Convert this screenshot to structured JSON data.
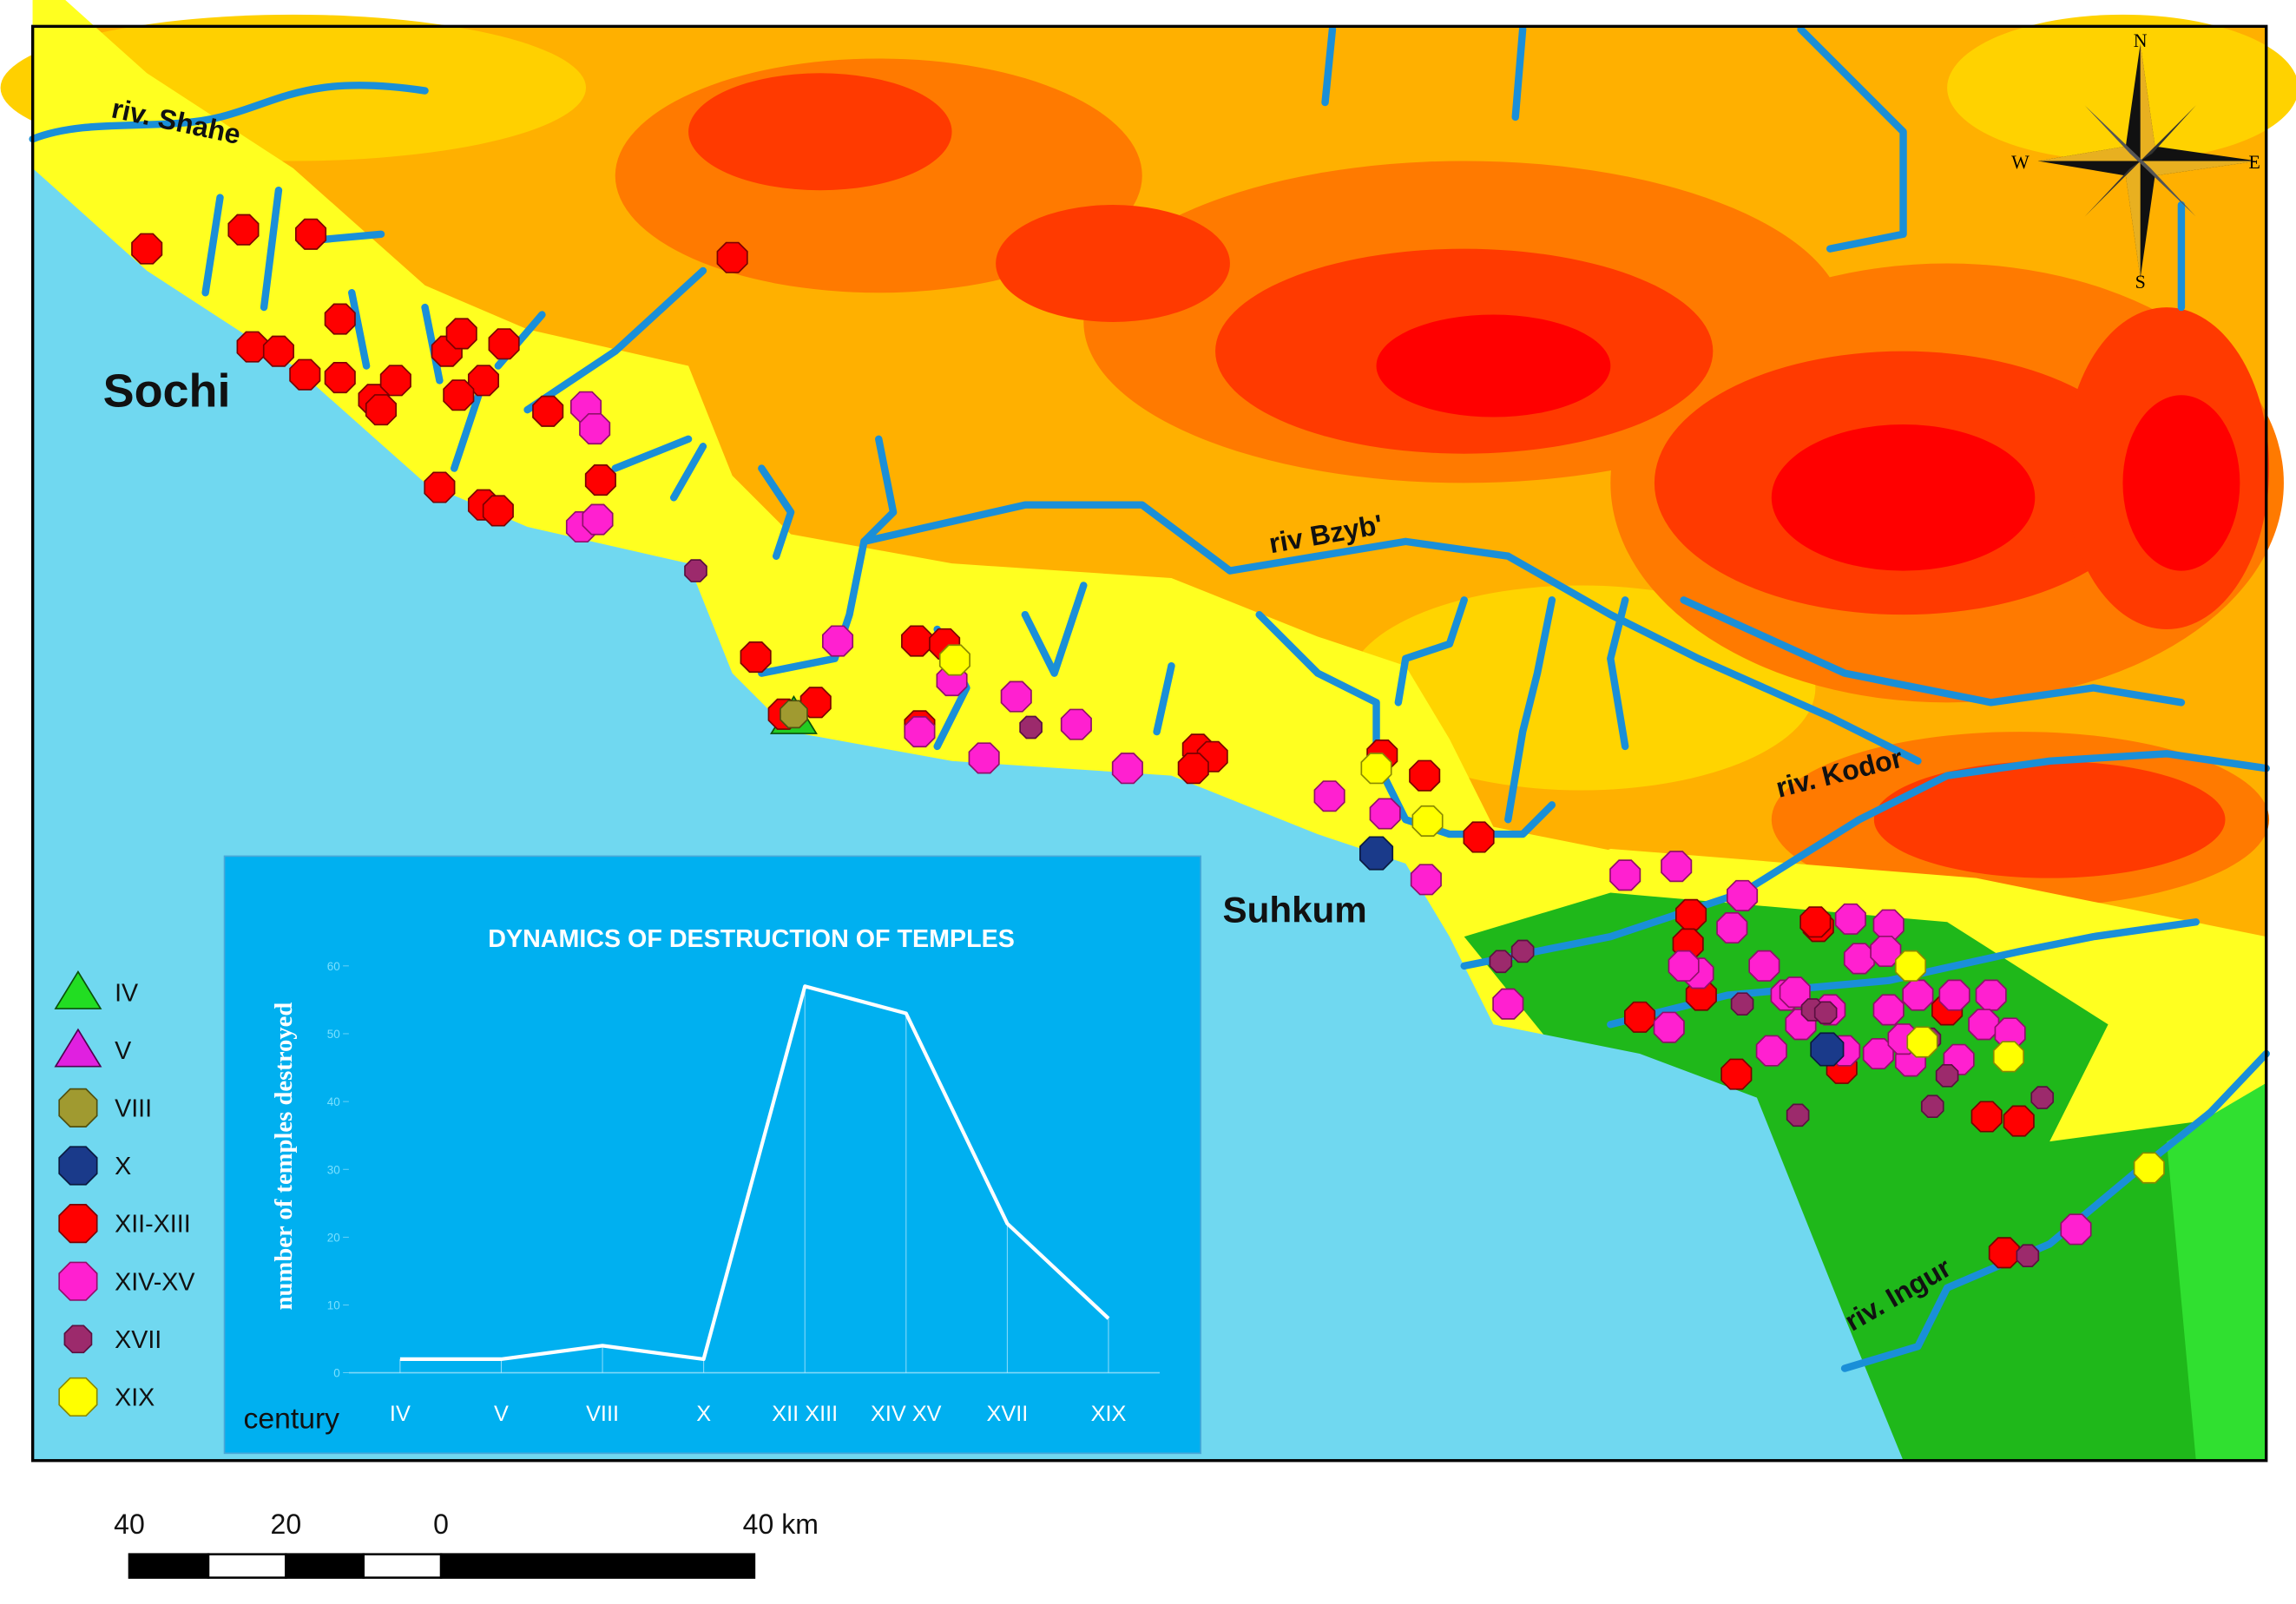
{
  "map": {
    "labels": {
      "shahe": "riv. Shahe",
      "sochi": "Sochi",
      "bzyb": "riv Bzyb'",
      "kodor": "riv. Kodor",
      "suhkum": "Suhkum",
      "ingur": "riv. Ingur"
    },
    "compass": {
      "n": "N",
      "s": "S",
      "w": "W",
      "e": "E"
    }
  },
  "legend": {
    "items": [
      "IV",
      "V",
      "VIII",
      "X",
      "XII-XIII",
      "XIV-XV",
      "XVII",
      "XIX"
    ]
  },
  "scale_bar": {
    "labels": [
      "40",
      "20",
      "0",
      "40 km"
    ]
  },
  "chart_data": {
    "type": "line",
    "title": "DYNAMICS OF DESTRUCTION OF TEMPLES",
    "y_label": "number of temples destroyed",
    "x_label": "century",
    "categories": [
      "IV",
      "V",
      "VIII",
      "X",
      "XII XIII",
      "XIV XV",
      "XVII",
      "XIX"
    ],
    "values": [
      2,
      2,
      4,
      2,
      57,
      53,
      22,
      8
    ],
    "color": "#ffffff",
    "ylim": [
      0,
      60
    ],
    "yticks": [
      0,
      10,
      20,
      30,
      40,
      50,
      60
    ]
  }
}
